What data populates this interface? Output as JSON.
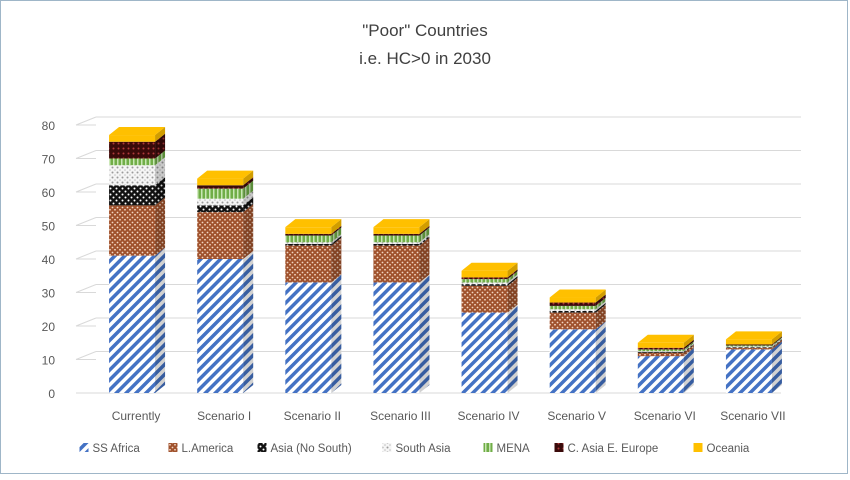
{
  "chart_data": {
    "type": "bar",
    "stacked": true,
    "title": "\"Poor\" Countries",
    "subtitle": "i.e. HC>0 in 2030",
    "categories": [
      "Currently",
      "Scenario I",
      "Scenario II",
      "Scenario III",
      "Scenario IV",
      "Scenario V",
      "Scenario VI",
      "Scenario VII"
    ],
    "ylim": [
      0,
      80
    ],
    "yticks": [
      0,
      10,
      20,
      30,
      40,
      50,
      60,
      70,
      80
    ],
    "grid": true,
    "legend_position": "bottom",
    "series": [
      {
        "name": "SS Africa",
        "color": "#4472c4",
        "pattern": "diagonal-stripes",
        "values": [
          41,
          40,
          33,
          33,
          24,
          19,
          11,
          13
        ]
      },
      {
        "name": "L.America",
        "color": "#a0522d",
        "pattern": "brick-dots",
        "values": [
          15,
          14,
          11,
          11,
          8,
          5,
          1,
          0.5
        ]
      },
      {
        "name": "Asia (No South)",
        "color": "#111111",
        "pattern": "dots-on-black",
        "values": [
          6,
          2,
          0.5,
          0.5,
          0.5,
          0.5,
          0.3,
          0.2
        ]
      },
      {
        "name": "South Asia",
        "color": "#d9d9d9",
        "pattern": "light-dots",
        "values": [
          6,
          2,
          0.5,
          0.5,
          0.5,
          0.5,
          0.2,
          0.2
        ]
      },
      {
        "name": "MENA",
        "color": "#70ad47",
        "pattern": "green-vertical",
        "values": [
          2,
          3,
          2,
          2,
          1,
          1,
          0.5,
          0.3
        ]
      },
      {
        "name": "C. Asia E. Europe",
        "color": "#3a0a0a",
        "pattern": "dark-red",
        "values": [
          5,
          1,
          0.5,
          0.5,
          0.5,
          1,
          0.5,
          0.3
        ]
      },
      {
        "name": "Oceania",
        "color": "#ffc000",
        "pattern": "solid",
        "values": [
          2,
          2,
          2,
          2,
          2,
          1.5,
          1.5,
          1.5
        ]
      }
    ]
  }
}
